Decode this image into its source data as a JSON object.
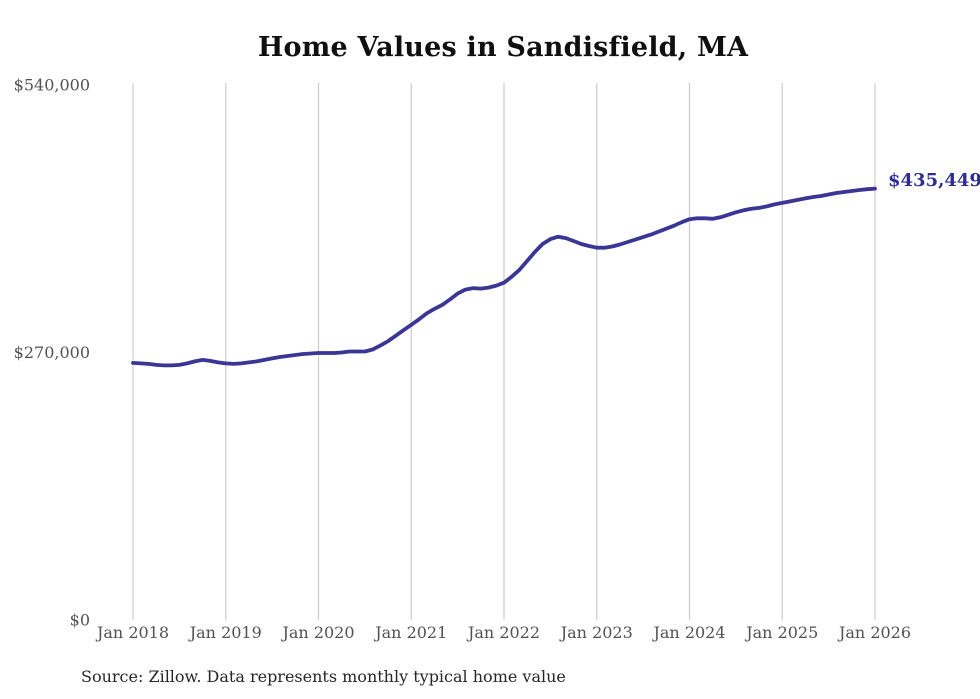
{
  "title": "Home Values in Sandisfield, MA",
  "end_label": "$435,449",
  "source_note": "Source: Zillow. Data represents monthly typical home value",
  "colors": {
    "line": "#3b3596",
    "end_label": "#2e2b96",
    "grid": "#cfcfcf",
    "tick_text": "#525252",
    "title_text": "#101010",
    "source_text": "#262626",
    "background": "#ffffff"
  },
  "chart_data": {
    "type": "line",
    "title": "Home Values in Sandisfield, MA",
    "xlabel": "",
    "ylabel": "",
    "ylim": [
      0,
      540000
    ],
    "grid": "vertical-only",
    "legend": "none",
    "y_ticks": [
      {
        "value": 0,
        "label": "$0"
      },
      {
        "value": 270000,
        "label": "$270,000"
      },
      {
        "value": 540000,
        "label": "$540,000"
      }
    ],
    "x_tick_labels": [
      "Jan 2018",
      "Jan 2019",
      "Jan 2020",
      "Jan 2021",
      "Jan 2022",
      "Jan 2023",
      "Jan 2024",
      "Jan 2025",
      "Jan 2026"
    ],
    "final_point": {
      "date": "2026-01",
      "value": 435449,
      "label": "$435,449"
    },
    "series": [
      {
        "name": "Monthly typical home value",
        "start": "2018-01",
        "frequency": "monthly",
        "values": [
          259500,
          259000,
          258500,
          257500,
          257000,
          257000,
          257500,
          259000,
          261000,
          262500,
          261500,
          260000,
          259000,
          258500,
          259000,
          260000,
          261000,
          262500,
          264000,
          265500,
          266500,
          267500,
          268500,
          269000,
          269500,
          269500,
          269500,
          270000,
          271000,
          271000,
          271000,
          273000,
          277000,
          281500,
          287000,
          292500,
          298000,
          303500,
          309500,
          314000,
          318000,
          323500,
          329500,
          333500,
          335000,
          334500,
          335500,
          337500,
          340500,
          346500,
          353500,
          362500,
          371500,
          379500,
          384500,
          386900,
          385500,
          382500,
          379500,
          377500,
          375800,
          375800,
          377000,
          379000,
          381500,
          384000,
          386500,
          389000,
          392000,
          395000,
          398000,
          401500,
          404500,
          405500,
          405500,
          405000,
          406500,
          409000,
          411500,
          413500,
          415000,
          416000,
          417500,
          419500,
          421000,
          422500,
          424000,
          425500,
          427000,
          428000,
          429500,
          431000,
          432000,
          433000,
          434000,
          434800,
          435449
        ]
      }
    ]
  }
}
